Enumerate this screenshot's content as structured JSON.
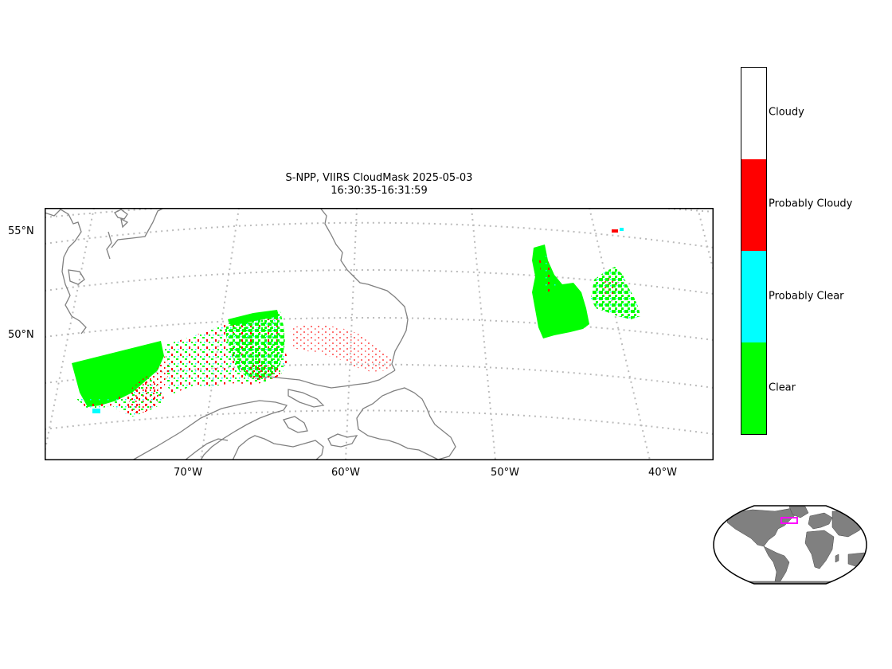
{
  "title": {
    "line1": "S-NPP, VIIRS CloudMask 2025-05-03",
    "line2": "16:30:35-16:31:59"
  },
  "map": {
    "latitude_ticks": [
      "55°N",
      "50°N"
    ],
    "longitude_ticks": [
      "70°W",
      "60°W",
      "50°W",
      "40°W"
    ],
    "coastline_color": "#808080",
    "graticule_color": "#bbbbbb"
  },
  "legend": {
    "categories": [
      {
        "label": "Cloudy",
        "color": "#ffffff"
      },
      {
        "label": "Probably Cloudy",
        "color": "#ff0000"
      },
      {
        "label": "Probably Clear",
        "color": "#00ffff"
      },
      {
        "label": "Clear",
        "color": "#00ff00"
      }
    ]
  },
  "inset": {
    "land_color": "#808080",
    "highlight_color": "#ff00ff"
  }
}
